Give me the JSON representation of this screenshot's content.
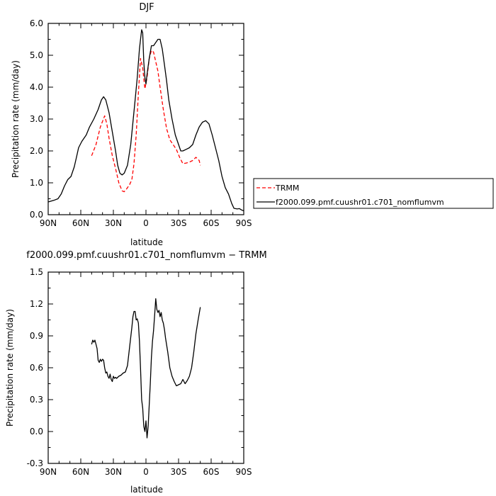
{
  "chart_data": [
    {
      "type": "line",
      "title": "DJF",
      "xlabel": "latitude",
      "ylabel": "Precipitation rate  (mm/day)",
      "xlim": [
        90,
        -90
      ],
      "ylim": [
        0,
        6
      ],
      "x_ticks": [
        "90N",
        "60N",
        "30N",
        "0",
        "30S",
        "60S",
        "90S"
      ],
      "y_ticks": [
        "0.0",
        "1.0",
        "2.0",
        "3.0",
        "4.0",
        "5.0",
        "6.0"
      ],
      "legend": "right",
      "series": [
        {
          "name": "TRMM",
          "color": "#ff0000",
          "style": "dashed",
          "points": [
            [
              50,
              1.85
            ],
            [
              46,
              2.2
            ],
            [
              42,
              2.75
            ],
            [
              38,
              3.1
            ],
            [
              36,
              2.85
            ],
            [
              34,
              2.4
            ],
            [
              31,
              1.85
            ],
            [
              28,
              1.45
            ],
            [
              25,
              1.0
            ],
            [
              22,
              0.75
            ],
            [
              20,
              0.72
            ],
            [
              18,
              0.8
            ],
            [
              15,
              0.95
            ],
            [
              13,
              1.1
            ],
            [
              11,
              1.6
            ],
            [
              9,
              2.5
            ],
            [
              7,
              3.8
            ],
            [
              5,
              4.9
            ],
            [
              3,
              4.6
            ],
            [
              1,
              3.95
            ],
            [
              -1,
              4.3
            ],
            [
              -3,
              4.9
            ],
            [
              -5,
              5.15
            ],
            [
              -7,
              5.1
            ],
            [
              -9,
              4.8
            ],
            [
              -11,
              4.5
            ],
            [
              -13,
              4.0
            ],
            [
              -16,
              3.3
            ],
            [
              -19,
              2.7
            ],
            [
              -22,
              2.35
            ],
            [
              -25,
              2.2
            ],
            [
              -28,
              2.05
            ],
            [
              -31,
              1.8
            ],
            [
              -34,
              1.6
            ],
            [
              -37,
              1.62
            ],
            [
              -40,
              1.65
            ],
            [
              -43,
              1.7
            ],
            [
              -46,
              1.8
            ],
            [
              -49,
              1.7
            ],
            [
              -50,
              1.55
            ]
          ]
        },
        {
          "name": "f2000.099.pmf.cuushr01.c701_nomflumvm",
          "color": "#000000",
          "style": "solid",
          "points": [
            [
              90,
              0.4
            ],
            [
              85,
              0.45
            ],
            [
              81,
              0.5
            ],
            [
              78,
              0.65
            ],
            [
              75,
              0.9
            ],
            [
              72,
              1.1
            ],
            [
              69,
              1.2
            ],
            [
              66,
              1.5
            ],
            [
              64,
              1.8
            ],
            [
              62,
              2.1
            ],
            [
              59,
              2.3
            ],
            [
              55,
              2.5
            ],
            [
              52,
              2.75
            ],
            [
              48,
              3.0
            ],
            [
              44,
              3.3
            ],
            [
              41,
              3.6
            ],
            [
              39,
              3.7
            ],
            [
              37,
              3.6
            ],
            [
              34,
              3.2
            ],
            [
              31,
              2.6
            ],
            [
              28,
              2.0
            ],
            [
              26,
              1.55
            ],
            [
              24,
              1.3
            ],
            [
              22,
              1.25
            ],
            [
              20,
              1.3
            ],
            [
              17,
              1.55
            ],
            [
              14,
              2.2
            ],
            [
              12,
              2.9
            ],
            [
              10,
              3.6
            ],
            [
              8,
              4.3
            ],
            [
              6,
              5.2
            ],
            [
              4,
              5.8
            ],
            [
              3,
              5.7
            ],
            [
              2,
              4.8
            ],
            [
              1,
              4.3
            ],
            [
              0,
              4.1
            ],
            [
              -1,
              4.4
            ],
            [
              -3,
              4.9
            ],
            [
              -5,
              5.3
            ],
            [
              -7,
              5.3
            ],
            [
              -9,
              5.4
            ],
            [
              -11,
              5.5
            ],
            [
              -13,
              5.5
            ],
            [
              -15,
              5.2
            ],
            [
              -17,
              4.7
            ],
            [
              -19,
              4.2
            ],
            [
              -21,
              3.6
            ],
            [
              -24,
              3.0
            ],
            [
              -27,
              2.5
            ],
            [
              -30,
              2.2
            ],
            [
              -32,
              2.0
            ],
            [
              -34,
              2.0
            ],
            [
              -37,
              2.05
            ],
            [
              -40,
              2.1
            ],
            [
              -43,
              2.2
            ],
            [
              -46,
              2.5
            ],
            [
              -49,
              2.75
            ],
            [
              -52,
              2.9
            ],
            [
              -55,
              2.95
            ],
            [
              -58,
              2.85
            ],
            [
              -61,
              2.5
            ],
            [
              -64,
              2.1
            ],
            [
              -67,
              1.7
            ],
            [
              -70,
              1.2
            ],
            [
              -73,
              0.85
            ],
            [
              -76,
              0.65
            ],
            [
              -79,
              0.35
            ],
            [
              -81,
              0.2
            ],
            [
              -84,
              0.18
            ],
            [
              -86,
              0.19
            ],
            [
              -88,
              0.15
            ],
            [
              -90,
              0.12
            ]
          ]
        }
      ]
    },
    {
      "type": "line",
      "title": "f2000.099.pmf.cuushr01.c701_nomflumvm  −  TRMM",
      "xlabel": "latitude",
      "ylabel": "Precipitation rate  (mm/day)",
      "xlim": [
        90,
        -90
      ],
      "ylim": [
        -0.3,
        1.5
      ],
      "x_ticks": [
        "90N",
        "60N",
        "30N",
        "0",
        "30S",
        "60S",
        "90S"
      ],
      "y_ticks": [
        "-0.3",
        "0.0",
        "0.3",
        "0.6",
        "0.9",
        "1.2",
        "1.5"
      ],
      "series": [
        {
          "color": "#000000",
          "style": "solid",
          "points": [
            [
              50,
              0.82
            ],
            [
              49,
              0.86
            ],
            [
              48,
              0.84
            ],
            [
              47,
              0.86
            ],
            [
              46,
              0.82
            ],
            [
              45,
              0.78
            ],
            [
              44,
              0.67
            ],
            [
              43,
              0.65
            ],
            [
              42,
              0.68
            ],
            [
              41,
              0.66
            ],
            [
              40,
              0.68
            ],
            [
              39,
              0.67
            ],
            [
              38,
              0.6
            ],
            [
              37,
              0.55
            ],
            [
              36,
              0.56
            ],
            [
              35,
              0.52
            ],
            [
              34,
              0.5
            ],
            [
              33,
              0.54
            ],
            [
              32,
              0.49
            ],
            [
              31,
              0.47
            ],
            [
              30,
              0.52
            ],
            [
              29,
              0.5
            ],
            [
              28,
              0.51
            ],
            [
              27,
              0.5
            ],
            [
              25,
              0.52
            ],
            [
              23,
              0.53
            ],
            [
              21,
              0.55
            ],
            [
              19,
              0.56
            ],
            [
              17,
              0.62
            ],
            [
              15,
              0.8
            ],
            [
              13,
              0.98
            ],
            [
              12,
              1.08
            ],
            [
              11,
              1.13
            ],
            [
              10,
              1.13
            ],
            [
              9,
              1.05
            ],
            [
              8,
              1.06
            ],
            [
              7,
              1.02
            ],
            [
              6,
              0.85
            ],
            [
              5,
              0.6
            ],
            [
              4,
              0.3
            ],
            [
              3,
              0.22
            ],
            [
              2,
              0.05
            ],
            [
              1,
              0.0
            ],
            [
              0,
              0.1
            ],
            [
              -1,
              -0.06
            ],
            [
              -2,
              0.05
            ],
            [
              -3,
              0.25
            ],
            [
              -4,
              0.45
            ],
            [
              -5,
              0.7
            ],
            [
              -6,
              0.85
            ],
            [
              -7,
              0.95
            ],
            [
              -8,
              1.1
            ],
            [
              -9,
              1.25
            ],
            [
              -10,
              1.15
            ],
            [
              -11,
              1.12
            ],
            [
              -12,
              1.14
            ],
            [
              -13,
              1.08
            ],
            [
              -14,
              1.12
            ],
            [
              -15,
              1.05
            ],
            [
              -16,
              1.02
            ],
            [
              -17,
              0.96
            ],
            [
              -18,
              0.88
            ],
            [
              -20,
              0.75
            ],
            [
              -22,
              0.6
            ],
            [
              -24,
              0.52
            ],
            [
              -26,
              0.47
            ],
            [
              -28,
              0.43
            ],
            [
              -30,
              0.44
            ],
            [
              -32,
              0.45
            ],
            [
              -34,
              0.49
            ],
            [
              -36,
              0.45
            ],
            [
              -38,
              0.48
            ],
            [
              -40,
              0.52
            ],
            [
              -42,
              0.6
            ],
            [
              -44,
              0.75
            ],
            [
              -46,
              0.92
            ],
            [
              -48,
              1.05
            ],
            [
              -50,
              1.17
            ]
          ]
        }
      ]
    }
  ]
}
